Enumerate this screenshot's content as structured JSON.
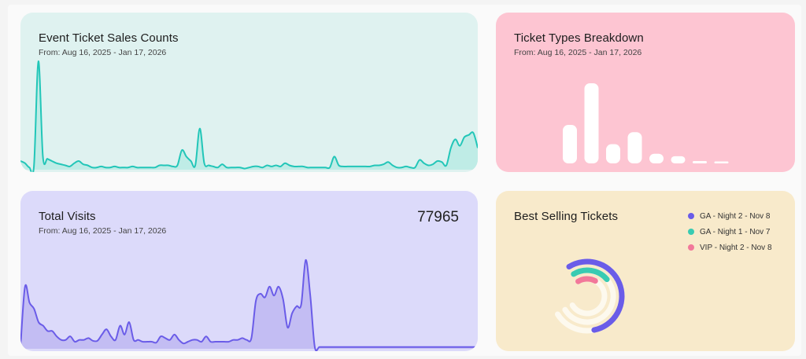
{
  "colors": {
    "sales_line": "#22c6b8",
    "sales_fill": "#bfece6",
    "types_bar": "#ffffff",
    "visits_line": "#6a5ce8",
    "visits_fill": "#c3bdf3",
    "track": "#fdf9ee",
    "ga_night2": "#6a5ce8",
    "ga_night1": "#39cbb2",
    "vip_night2": "#f2789a"
  },
  "sales": {
    "title": "Event Ticket Sales Counts",
    "subtitle": "From: Aug 16, 2025 - Jan 17, 2026"
  },
  "types": {
    "title": "Ticket Types Breakdown",
    "subtitle": "From: Aug 16, 2025 - Jan 17, 2026"
  },
  "visits": {
    "title": "Total Visits",
    "subtitle": "From: Aug 16, 2025 - Jan 17, 2026",
    "total": "77965"
  },
  "best": {
    "title": "Best Selling Tickets",
    "legend": [
      {
        "label": "GA - Night 2 - Nov 8",
        "color": "#6a5ce8"
      },
      {
        "label": "GA - Night 1 - Nov 7",
        "color": "#39cbb2"
      },
      {
        "label": "VIP - Night 2 - Nov 8",
        "color": "#f2789a"
      }
    ]
  },
  "chart_data": [
    {
      "type": "area",
      "title": "Event Ticket Sales Counts",
      "ylim": [
        0,
        100
      ],
      "values": [
        8,
        6,
        2,
        3,
        100,
        12,
        10,
        8,
        6,
        5,
        4,
        3,
        6,
        8,
        5,
        4,
        2,
        2,
        3,
        2,
        2,
        3,
        2,
        2,
        2,
        3,
        2,
        2,
        2,
        2,
        2,
        4,
        4,
        4,
        3,
        4,
        18,
        12,
        8,
        4,
        38,
        6,
        4,
        3,
        2,
        5,
        2,
        2,
        2,
        2,
        1,
        2,
        3,
        3,
        2,
        4,
        3,
        4,
        3,
        6,
        4,
        3,
        3,
        3,
        2,
        2,
        2,
        2,
        2,
        2,
        12,
        4,
        3,
        3,
        3,
        3,
        3,
        3,
        3,
        4,
        4,
        5,
        7,
        4,
        2,
        2,
        3,
        2,
        2,
        9,
        6,
        4,
        5,
        8,
        7,
        4,
        20,
        28,
        22,
        30,
        32,
        34,
        20
      ]
    },
    {
      "type": "bar",
      "title": "Ticket Types Breakdown",
      "ylim": [
        0,
        100
      ],
      "values": [
        48,
        100,
        24,
        39,
        12,
        9,
        3,
        2
      ]
    },
    {
      "type": "area",
      "title": "Total Visits",
      "ylim": [
        0,
        100
      ],
      "values": [
        2,
        70,
        52,
        45,
        30,
        26,
        20,
        20,
        14,
        10,
        10,
        14,
        8,
        10,
        10,
        12,
        9,
        9,
        16,
        22,
        14,
        10,
        26,
        16,
        30,
        10,
        10,
        8,
        8,
        8,
        7,
        14,
        12,
        10,
        16,
        10,
        6,
        8,
        10,
        10,
        8,
        14,
        8,
        8,
        8,
        8,
        8,
        10,
        10,
        12,
        10,
        12,
        54,
        62,
        58,
        70,
        60,
        70,
        56,
        24,
        40,
        48,
        50,
        100,
        60,
        2,
        2,
        2,
        2,
        2,
        2,
        2,
        2,
        2,
        2,
        2,
        2,
        2,
        2,
        2,
        2,
        2,
        2,
        2,
        2,
        2,
        2,
        2,
        2,
        2,
        2,
        2,
        2,
        2,
        2,
        2,
        2,
        2,
        2,
        2,
        2,
        2
      ]
    },
    {
      "type": "pie",
      "title": "Best Selling Tickets",
      "categories": [
        "GA - Night 2 - Nov 8",
        "GA - Night 1 - Nov 7",
        "VIP - Night 2 - Nov 8"
      ],
      "values": [
        37,
        15,
        11
      ]
    }
  ]
}
